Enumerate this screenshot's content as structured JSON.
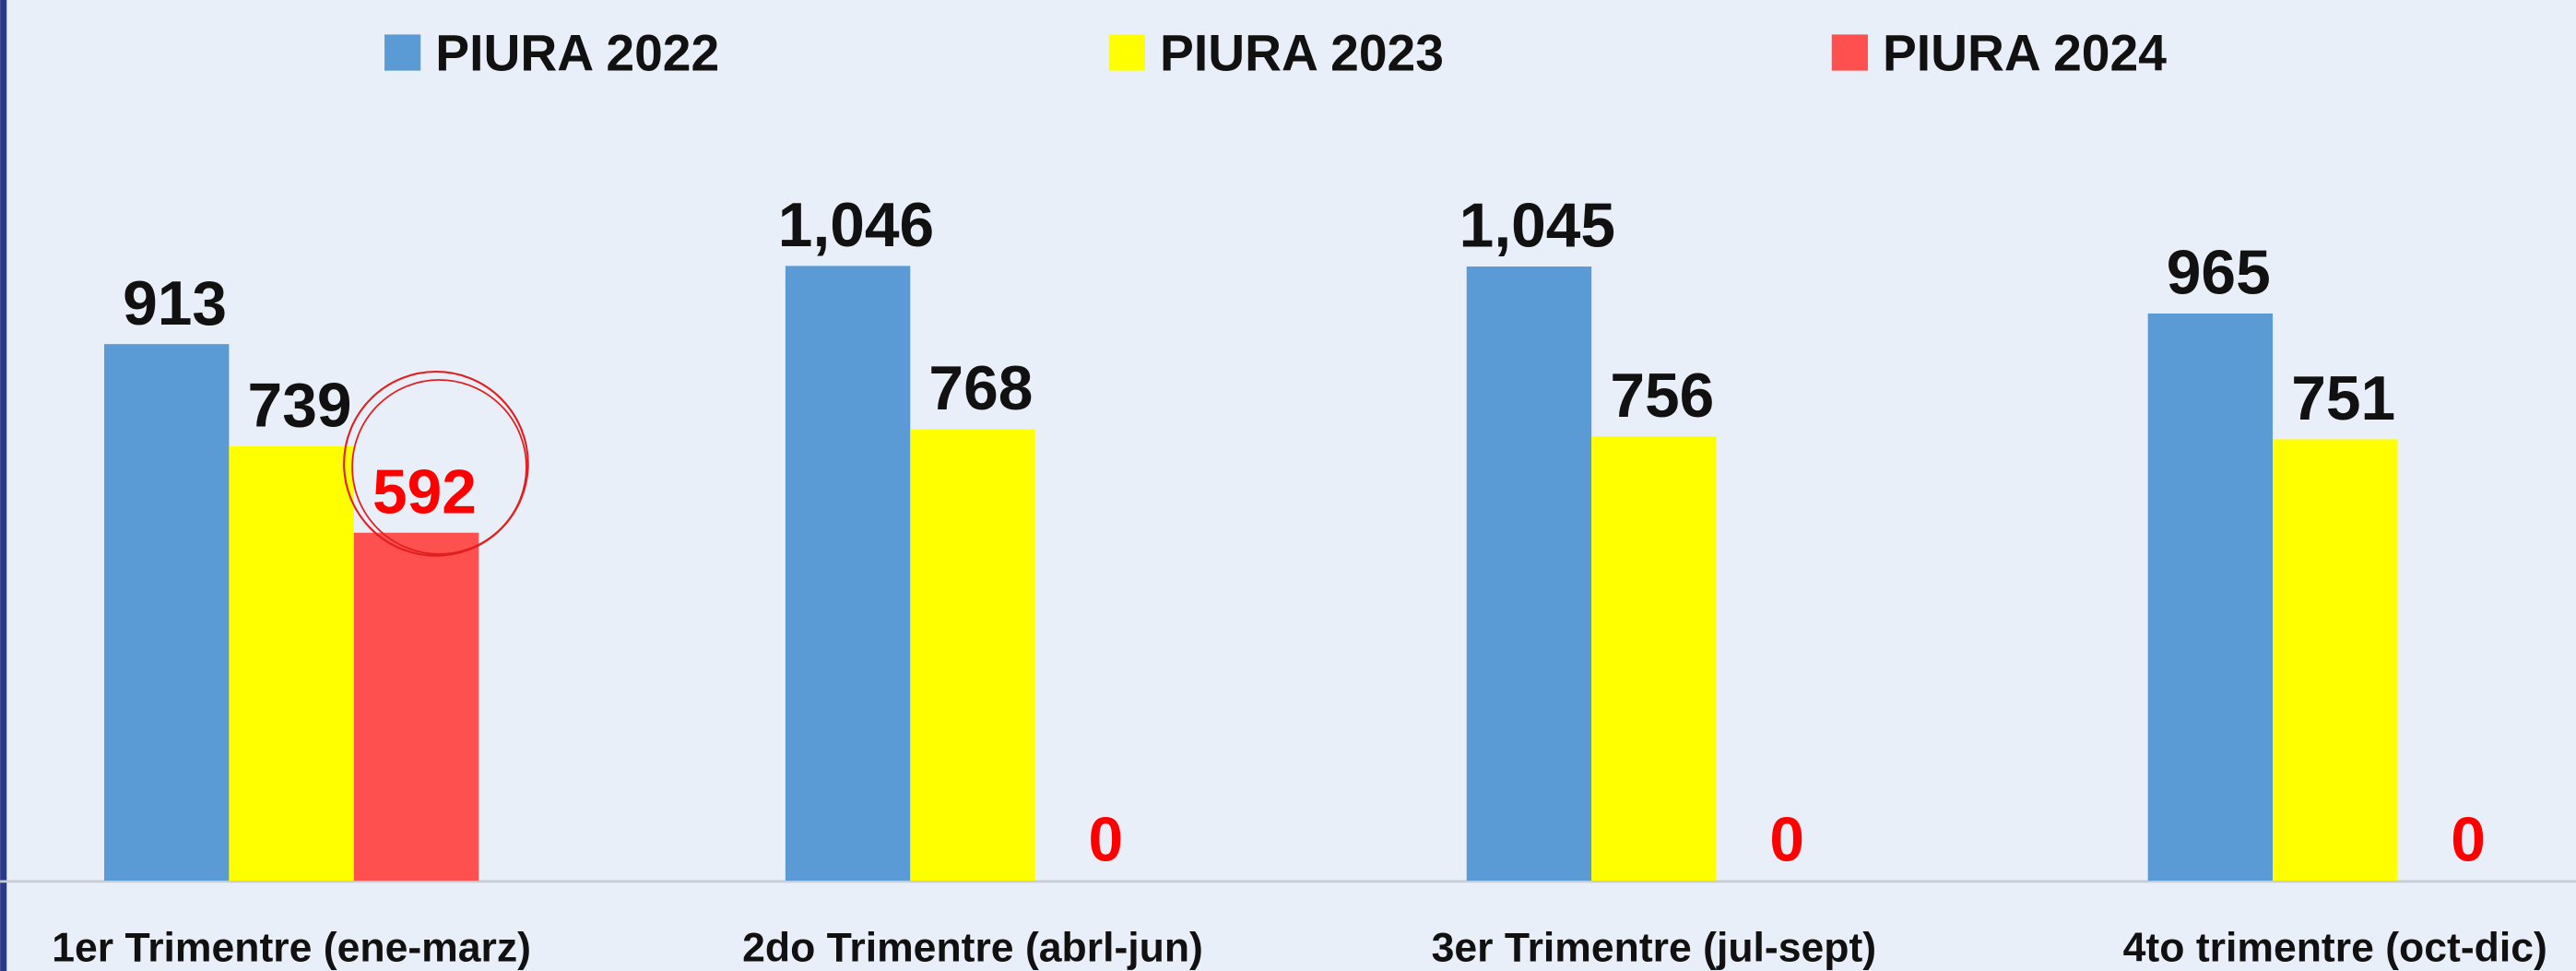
{
  "chart_data": {
    "type": "bar",
    "categories": [
      "1er Trimentre (ene-marz)",
      "2do Trimentre (abrl-jun)",
      "3er Trimentre (jul-sept)",
      "4to trimentre (oct-dic)"
    ],
    "series": [
      {
        "name": "PIURA 2022",
        "color": "#5b9bd5",
        "values": [
          913,
          1046,
          1045,
          965
        ],
        "value_labels": [
          "913",
          "1,046",
          "1,045",
          "965"
        ],
        "label_color": "#111111"
      },
      {
        "name": "PIURA 2023",
        "color": "#ffff00",
        "values": [
          739,
          768,
          756,
          751
        ],
        "label_color": "#111111"
      },
      {
        "name": "PIURA 2024",
        "color": "#ff5050",
        "values": [
          592,
          0,
          0,
          0
        ],
        "label_color": "#ff0000"
      }
    ],
    "ylim": [
      0,
      1300
    ],
    "legend": "top"
  }
}
